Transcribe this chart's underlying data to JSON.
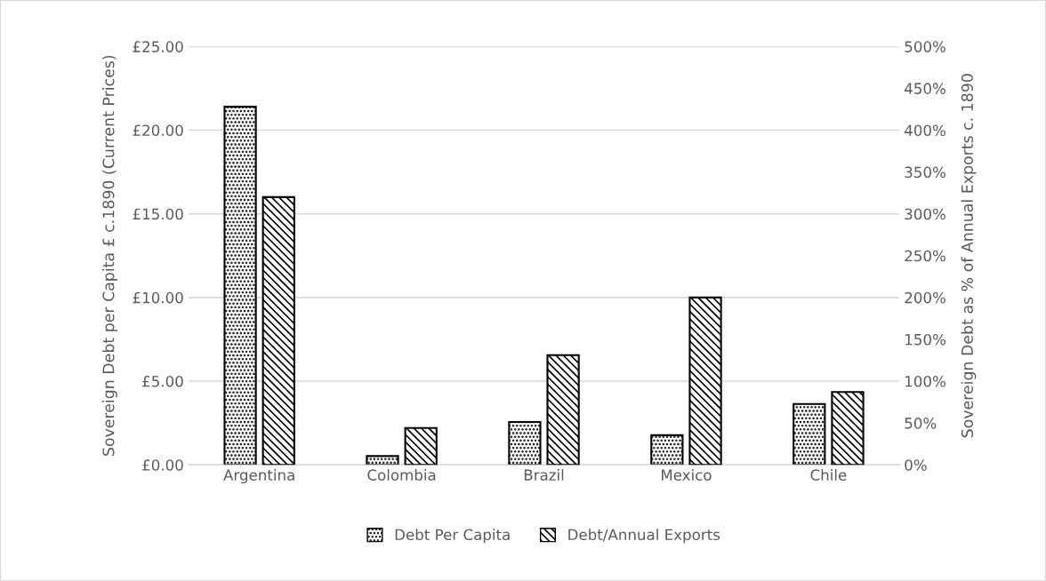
{
  "chart_data": {
    "type": "bar",
    "ylabel": "Sovereign Debt per Capita £ c.1890 (Current Prices)",
    "y2label": "Sovereign Debt as % of Annual Exports c. 1890",
    "categories": [
      "Argentina",
      "Colombia",
      "Brazil",
      "Mexico",
      "Chile"
    ],
    "series": [
      {
        "name": "Debt Per Capita",
        "color": "#000000",
        "values": [
          21.4,
          0.52,
          2.56,
          1.77,
          3.63
        ]
      },
      {
        "name": "Debt/Annual Exports",
        "color": "#000000",
        "axis": "y2",
        "values": [
          320,
          44,
          131,
          200,
          87
        ]
      }
    ],
    "ylim": [
      0,
      25
    ],
    "yticks": [
      {
        "value": 0,
        "label": "£0.00"
      },
      {
        "value": 5,
        "label": "£5.00"
      },
      {
        "value": 10,
        "label": "£10.00"
      },
      {
        "value": 15,
        "label": "£15.00"
      },
      {
        "value": 20,
        "label": "£20.00"
      },
      {
        "value": 25,
        "label": "£25.00"
      }
    ],
    "y2lim": [
      0,
      500
    ],
    "y2ticks": [
      {
        "value": 0,
        "label": "0%"
      },
      {
        "value": 50,
        "label": "50%"
      },
      {
        "value": 100,
        "label": "100%"
      },
      {
        "value": 150,
        "label": "150%"
      },
      {
        "value": 200,
        "label": "200%"
      },
      {
        "value": 250,
        "label": "250%"
      },
      {
        "value": 300,
        "label": "300%"
      },
      {
        "value": 350,
        "label": "350%"
      },
      {
        "value": 400,
        "label": "400%"
      },
      {
        "value": 450,
        "label": "450%"
      },
      {
        "value": 500,
        "label": "500%"
      }
    ],
    "grid": "y",
    "legend": "bottom"
  }
}
